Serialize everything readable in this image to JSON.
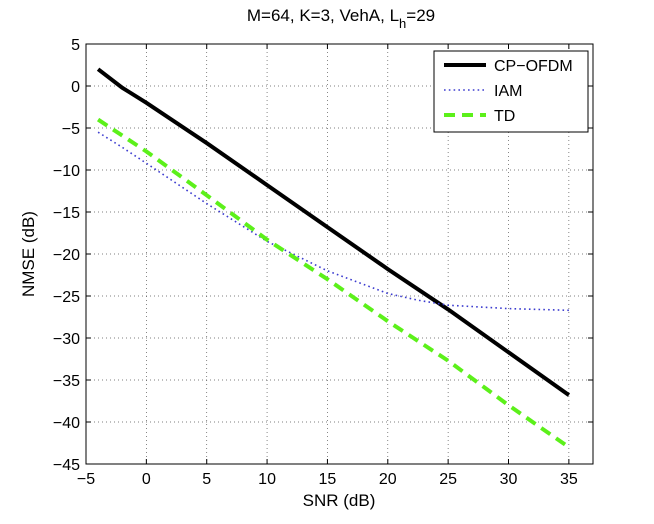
{
  "chart_data": {
    "type": "line",
    "title": {
      "main": "M=64, K=3, VehA, L",
      "subscript": "h",
      "suffix": "=29"
    },
    "xlabel": "SNR (dB)",
    "ylabel": "NMSE (dB)",
    "xlim": [
      -5,
      37
    ],
    "ylim": [
      -45,
      5
    ],
    "xticks": [
      -5,
      0,
      5,
      10,
      15,
      20,
      25,
      30,
      35
    ],
    "yticks": [
      5,
      0,
      -5,
      -10,
      -15,
      -20,
      -25,
      -30,
      -35,
      -40,
      -45
    ],
    "xtick_labels": [
      "−5",
      "0",
      "5",
      "10",
      "15",
      "20",
      "25",
      "30",
      "35"
    ],
    "ytick_labels": [
      "5",
      "0",
      "−5",
      "−10",
      "−15",
      "−20",
      "−25",
      "−30",
      "−35",
      "−40",
      "−45"
    ],
    "grid": true,
    "legend_position": "top-right",
    "series": [
      {
        "name": "CP−OFDM",
        "style": "solid",
        "color": "#000000",
        "x": [
          -4,
          -2,
          0,
          5,
          10,
          15,
          20,
          25,
          30,
          35
        ],
        "y": [
          2,
          -0.2,
          -2,
          -6.8,
          -11.8,
          -16.8,
          -21.8,
          -26.6,
          -31.7,
          -36.8
        ]
      },
      {
        "name": "IAM",
        "style": "dotted",
        "color": "#3b3bcf",
        "x": [
          -4,
          -2,
          0,
          5,
          10,
          15,
          20,
          22.5,
          25,
          30,
          35
        ],
        "y": [
          -5.5,
          -7.3,
          -9.2,
          -14,
          -18.5,
          -22,
          -24.7,
          -25.5,
          -26.1,
          -26.5,
          -26.7
        ]
      },
      {
        "name": "TD",
        "style": "dashed",
        "color": "#5cf01a",
        "x": [
          -4,
          0,
          5,
          10,
          15,
          20,
          25,
          30,
          35
        ],
        "y": [
          -4,
          -7.8,
          -13,
          -18.3,
          -23,
          -28,
          -32.7,
          -38,
          -43
        ]
      }
    ]
  }
}
